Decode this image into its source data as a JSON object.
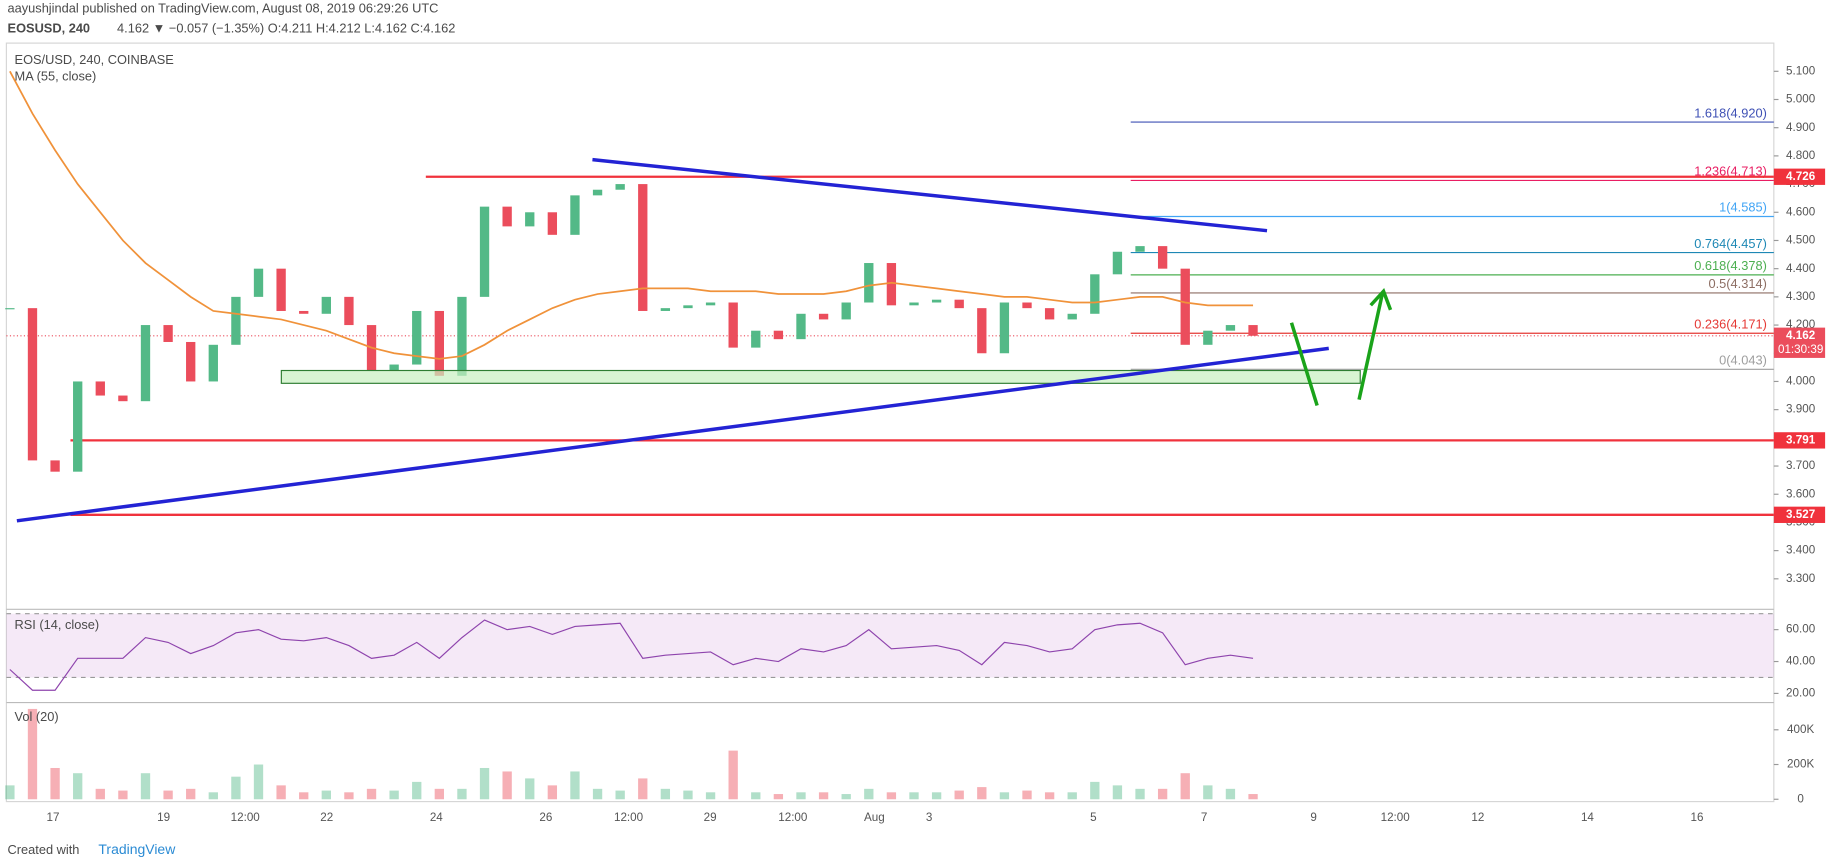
{
  "header": {
    "publisher": "aayushjindal published on TradingView.com, August 08, 2019 06:29:26 UTC",
    "symbol": "EOSUSD, 240",
    "quote": "4.162 ▼ −0.057 (−1.35%) O:4.211 H:4.212 L:4.162 C:4.162"
  },
  "footer": {
    "created": "Created with",
    "brand": "TradingView"
  },
  "chart_data": {
    "type": "candlestick",
    "title": "EOS/USD, 240, COINBASE",
    "xticks": [
      "17",
      "19",
      "12:00",
      "22",
      "24",
      "26",
      "12:00",
      "29",
      "12:00",
      "Aug",
      "3",
      "5",
      "7",
      "9",
      "12:00",
      "12",
      "14",
      "16"
    ],
    "ylim": [
      3.2,
      5.2
    ],
    "yticks": [
      {
        "value": 3.3,
        "label": "3.300"
      },
      {
        "value": 3.4,
        "label": "3.400"
      },
      {
        "value": 3.5,
        "label": "3.500"
      },
      {
        "value": 3.6,
        "label": "3.600"
      },
      {
        "value": 3.7,
        "label": "3.700"
      },
      {
        "value": 3.8,
        "label": "3.800"
      },
      {
        "value": 3.9,
        "label": "3.900"
      },
      {
        "value": 4.0,
        "label": "4.000"
      },
      {
        "value": 4.1,
        "label": "4.100"
      },
      {
        "value": 4.2,
        "label": "4.200"
      },
      {
        "value": 4.3,
        "label": "4.300"
      },
      {
        "value": 4.4,
        "label": "4.400"
      },
      {
        "value": 4.5,
        "label": "4.500"
      },
      {
        "value": 4.6,
        "label": "4.600"
      },
      {
        "value": 4.7,
        "label": "4.700"
      },
      {
        "value": 4.8,
        "label": "4.800"
      },
      {
        "value": 4.9,
        "label": "4.900"
      },
      {
        "value": 5.0,
        "label": "5.000"
      },
      {
        "value": 5.1,
        "label": "5.100"
      }
    ],
    "series": [
      {
        "name": "EOS/USD",
        "up_color": "#53b987",
        "down_color": "#eb4d5c",
        "values": [
          4.26,
          3.72,
          3.68,
          4.0,
          3.95,
          3.93,
          4.2,
          4.14,
          4.0,
          4.13,
          4.3,
          4.4,
          4.25,
          4.24,
          4.3,
          4.2,
          4.04,
          4.06,
          4.25,
          4.02,
          4.3,
          4.62,
          4.55,
          4.6,
          4.52,
          4.66,
          4.68,
          4.7,
          4.25,
          4.26,
          4.27,
          4.28,
          4.12,
          4.18,
          4.15,
          4.24,
          4.22,
          4.28,
          4.42,
          4.27,
          4.28,
          4.29,
          4.26,
          4.1,
          4.28,
          4.26,
          4.22,
          4.24,
          4.38,
          4.46,
          4.48,
          4.4,
          4.13,
          4.18,
          4.2,
          4.162
        ]
      },
      {
        "name": "MA (55, close)",
        "color": "#f0923a",
        "values": [
          5.1,
          4.95,
          4.82,
          4.7,
          4.6,
          4.5,
          4.42,
          4.36,
          4.3,
          4.25,
          4.24,
          4.23,
          4.22,
          4.2,
          4.18,
          4.15,
          4.12,
          4.1,
          4.09,
          4.08,
          4.09,
          4.13,
          4.18,
          4.22,
          4.26,
          4.29,
          4.31,
          4.32,
          4.33,
          4.33,
          4.33,
          4.32,
          4.32,
          4.32,
          4.31,
          4.31,
          4.31,
          4.32,
          4.34,
          4.35,
          4.34,
          4.33,
          4.32,
          4.31,
          4.3,
          4.3,
          4.29,
          4.28,
          4.28,
          4.29,
          4.3,
          4.3,
          4.28,
          4.27,
          4.27,
          4.27
        ]
      }
    ],
    "levels": [
      {
        "value": 4.726,
        "label": "4.726"
      },
      {
        "value": 3.791,
        "label": "3.791"
      },
      {
        "value": 3.527,
        "label": "3.527"
      }
    ],
    "level_color": "#f0323c",
    "last_price": {
      "value": 4.162,
      "label": "4.162",
      "countdown": "01:30:39"
    },
    "fib": [
      {
        "value": 4.92,
        "label": "1.618(4.920)",
        "color": "#3f51b5"
      },
      {
        "value": 4.713,
        "label": "1.236(4.713)",
        "color": "#e91e63"
      },
      {
        "value": 4.585,
        "label": "1(4.585)",
        "color": "#42a5f5"
      },
      {
        "value": 4.457,
        "label": "0.764(4.457)",
        "color": "#1e88b5"
      },
      {
        "value": 4.378,
        "label": "0.618(4.378)",
        "color": "#4caf50"
      },
      {
        "value": 4.314,
        "label": "0.5(4.314)",
        "color": "#8d6e63"
      },
      {
        "value": 4.171,
        "label": "0.236(4.171)",
        "color": "#e53935"
      },
      {
        "value": 4.043,
        "label": "0(4.043)",
        "color": "#9e9e9e"
      }
    ],
    "rsi": {
      "title": "RSI (14, close)",
      "color": "#8e44ad",
      "ylim": [
        15,
        72
      ],
      "band": [
        30,
        70
      ],
      "yticks": [
        {
          "value": 20,
          "label": "20.00"
        },
        {
          "value": 40,
          "label": "40.00"
        },
        {
          "value": 60,
          "label": "60.00"
        }
      ],
      "values": [
        35,
        22,
        22,
        42,
        42,
        42,
        55,
        52,
        45,
        50,
        58,
        60,
        54,
        53,
        55,
        50,
        42,
        44,
        52,
        42,
        55,
        66,
        60,
        62,
        57,
        62,
        63,
        64,
        42,
        44,
        45,
        46,
        38,
        42,
        40,
        48,
        46,
        50,
        60,
        48,
        49,
        50,
        47,
        38,
        52,
        50,
        46,
        48,
        60,
        63,
        64,
        58,
        38,
        42,
        44,
        42
      ]
    },
    "volume": {
      "title": "Vol (20)",
      "ylim": [
        0,
        550000
      ],
      "yticks": [
        0,
        {
          "value": 200000,
          "label": "200K"
        },
        {
          "value": 400000,
          "label": "400K"
        }
      ],
      "values": [
        80000,
        520000,
        180000,
        150000,
        60000,
        50000,
        150000,
        50000,
        60000,
        40000,
        130000,
        200000,
        80000,
        40000,
        50000,
        40000,
        60000,
        50000,
        100000,
        60000,
        60000,
        180000,
        160000,
        120000,
        80000,
        160000,
        60000,
        50000,
        120000,
        60000,
        50000,
        40000,
        280000,
        40000,
        30000,
        40000,
        40000,
        30000,
        60000,
        40000,
        40000,
        40000,
        50000,
        70000,
        40000,
        50000,
        40000,
        40000,
        100000,
        80000,
        60000,
        60000,
        150000,
        80000,
        60000,
        30000
      ]
    }
  }
}
